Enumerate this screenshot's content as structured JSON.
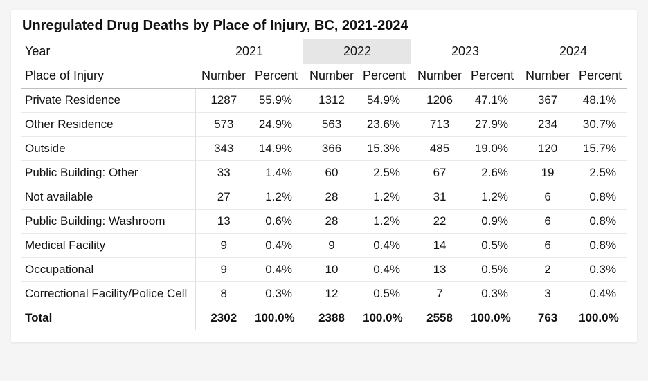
{
  "type": "table",
  "title": "Unregulated Drug Deaths by Place of Injury, BC, 2021-2024",
  "header": {
    "year_label": "Year",
    "place_label": "Place of Injury",
    "num_label": "Number",
    "pct_label": "Percent"
  },
  "years": [
    "2021",
    "2022",
    "2023",
    "2024"
  ],
  "highlight_year_index": 1,
  "rows": [
    {
      "name": "Private Residence",
      "vals": [
        [
          "1287",
          "55.9%"
        ],
        [
          "1312",
          "54.9%"
        ],
        [
          "1206",
          "47.1%"
        ],
        [
          "367",
          "48.1%"
        ]
      ]
    },
    {
      "name": "Other Residence",
      "vals": [
        [
          "573",
          "24.9%"
        ],
        [
          "563",
          "23.6%"
        ],
        [
          "713",
          "27.9%"
        ],
        [
          "234",
          "30.7%"
        ]
      ]
    },
    {
      "name": "Outside",
      "vals": [
        [
          "343",
          "14.9%"
        ],
        [
          "366",
          "15.3%"
        ],
        [
          "485",
          "19.0%"
        ],
        [
          "120",
          "15.7%"
        ]
      ]
    },
    {
      "name": "Public Building: Other",
      "vals": [
        [
          "33",
          "1.4%"
        ],
        [
          "60",
          "2.5%"
        ],
        [
          "67",
          "2.6%"
        ],
        [
          "19",
          "2.5%"
        ]
      ]
    },
    {
      "name": "Not available",
      "vals": [
        [
          "27",
          "1.2%"
        ],
        [
          "28",
          "1.2%"
        ],
        [
          "31",
          "1.2%"
        ],
        [
          "6",
          "0.8%"
        ]
      ]
    },
    {
      "name": "Public Building: Washroom",
      "vals": [
        [
          "13",
          "0.6%"
        ],
        [
          "28",
          "1.2%"
        ],
        [
          "22",
          "0.9%"
        ],
        [
          "6",
          "0.8%"
        ]
      ]
    },
    {
      "name": "Medical Facility",
      "vals": [
        [
          "9",
          "0.4%"
        ],
        [
          "9",
          "0.4%"
        ],
        [
          "14",
          "0.5%"
        ],
        [
          "6",
          "0.8%"
        ]
      ]
    },
    {
      "name": "Occupational",
      "vals": [
        [
          "9",
          "0.4%"
        ],
        [
          "10",
          "0.4%"
        ],
        [
          "13",
          "0.5%"
        ],
        [
          "2",
          "0.3%"
        ]
      ]
    },
    {
      "name": "Correctional Facility/Police Cell",
      "vals": [
        [
          "8",
          "0.3%"
        ],
        [
          "12",
          "0.5%"
        ],
        [
          "7",
          "0.3%"
        ],
        [
          "3",
          "0.4%"
        ]
      ]
    }
  ],
  "total": {
    "name": "Total",
    "vals": [
      [
        "2302",
        "100.0%"
      ],
      [
        "2388",
        "100.0%"
      ],
      [
        "2558",
        "100.0%"
      ],
      [
        "763",
        "100.0%"
      ]
    ]
  },
  "style": {
    "background_color": "#f5f5f5",
    "card_color": "#ffffff",
    "row_border_color": "#e9e9e9",
    "header_border_color": "#bfbfbf",
    "highlight_color": "#e6e6e6",
    "text_color": "#111111",
    "title_fontsize_pt": 15,
    "body_fontsize_pt": 13,
    "font_family": "Segoe UI"
  }
}
